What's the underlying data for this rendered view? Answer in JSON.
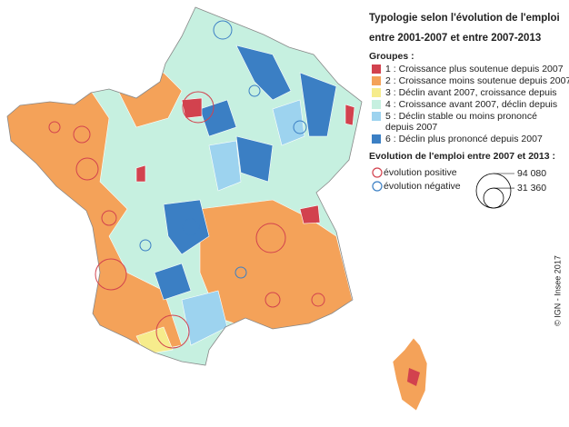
{
  "legend": {
    "title": [
      "Typologie selon l'évolution de l'emploi",
      "entre 2001-2007 et entre 2007-2013"
    ],
    "groups_title": "Groupes :",
    "groups": [
      {
        "label": [
          "1 : Croissance plus soutenue depuis 2007"
        ],
        "color": "#d2424e"
      },
      {
        "label": [
          "2 : Croissance moins soutenue depuis 2007"
        ],
        "color": "#f4a259"
      },
      {
        "label": [
          "3 : Déclin avant 2007, croissance depuis"
        ],
        "color": "#f6ec8c"
      },
      {
        "label": [
          "4 : Croissance avant 2007, déclin depuis"
        ],
        "color": "#c6f0e0"
      },
      {
        "label": [
          "5 : Déclin stable ou moins prononcé",
          "depuis 2007"
        ],
        "color": "#9dd3ef"
      },
      {
        "label": [
          "6 : Déclin plus prononcé depuis 2007"
        ],
        "color": "#3b7fc4"
      }
    ],
    "circles_title": "Evolution de l'emploi entre 2007 et 2013 :",
    "positive": {
      "label": "évolution positive",
      "color": "#d2424e"
    },
    "negative": {
      "label": "évolution négative",
      "color": "#3b7fc4"
    },
    "sizes": [
      {
        "value": 94080,
        "label": "94 080"
      },
      {
        "value": 31360,
        "label": "31 360"
      }
    ]
  },
  "credit": "© IGN - Insee 2017"
}
